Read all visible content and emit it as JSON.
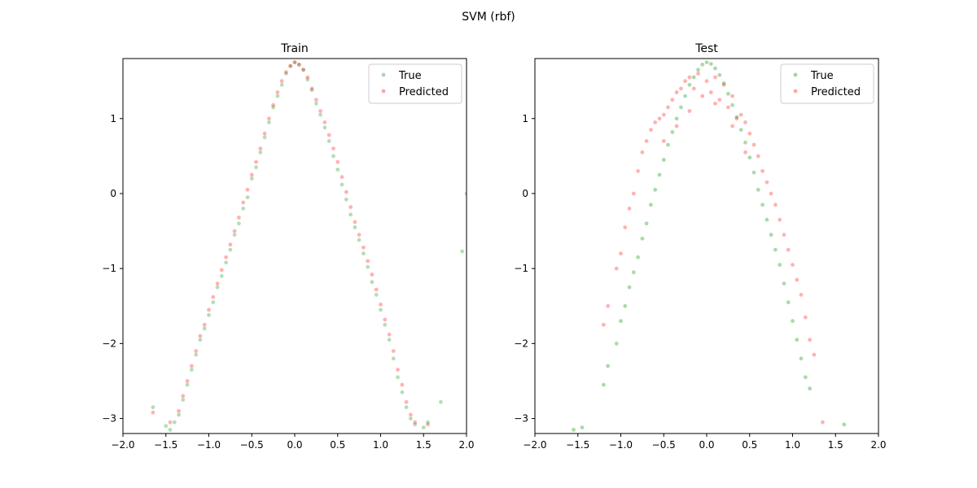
{
  "figure": {
    "suptitle": "SVM (rbf)"
  },
  "colors": {
    "true_series": "#2ca02c",
    "predicted_series": "#ff0000"
  },
  "chart_data": [
    {
      "type": "scatter",
      "title": "Train",
      "xlabel": "",
      "ylabel": "",
      "xlim": [
        -2.0,
        2.0
      ],
      "ylim": [
        -3.2,
        1.8
      ],
      "xticks": [
        "−2.0",
        "−1.5",
        "−1.0",
        "−0.5",
        "0.0",
        "0.5",
        "1.0",
        "1.5",
        "2.0"
      ],
      "yticks": [
        "−3",
        "−2",
        "−1",
        "0",
        "1"
      ],
      "xtick_values": [
        -2.0,
        -1.5,
        -1.0,
        -0.5,
        0.0,
        0.5,
        1.0,
        1.5,
        2.0
      ],
      "ytick_values": [
        -3,
        -2,
        -1,
        0,
        1
      ],
      "legend": {
        "position": "upper right",
        "entries": [
          "True",
          "Predicted"
        ]
      },
      "grid": false,
      "series": [
        {
          "name": "True",
          "color": "#2ca02c",
          "alpha": 0.35,
          "points": [
            [
              -1.65,
              -2.85
            ],
            [
              -1.5,
              -3.1
            ],
            [
              -1.45,
              -3.15
            ],
            [
              -1.4,
              -3.05
            ],
            [
              -1.35,
              -2.95
            ],
            [
              -1.3,
              -2.75
            ],
            [
              -1.25,
              -2.55
            ],
            [
              -1.2,
              -2.35
            ],
            [
              -1.15,
              -2.15
            ],
            [
              -1.1,
              -1.95
            ],
            [
              -1.05,
              -1.8
            ],
            [
              -1.0,
              -1.62
            ],
            [
              -0.95,
              -1.45
            ],
            [
              -0.9,
              -1.25
            ],
            [
              -0.85,
              -1.1
            ],
            [
              -0.8,
              -0.92
            ],
            [
              -0.75,
              -0.75
            ],
            [
              -0.7,
              -0.55
            ],
            [
              -0.65,
              -0.4
            ],
            [
              -0.6,
              -0.2
            ],
            [
              -0.55,
              -0.05
            ],
            [
              -0.5,
              0.2
            ],
            [
              -0.45,
              0.35
            ],
            [
              -0.4,
              0.55
            ],
            [
              -0.35,
              0.75
            ],
            [
              -0.3,
              0.95
            ],
            [
              -0.25,
              1.15
            ],
            [
              -0.2,
              1.3
            ],
            [
              -0.15,
              1.45
            ],
            [
              -0.1,
              1.6
            ],
            [
              -0.05,
              1.7
            ],
            [
              0.0,
              1.75
            ],
            [
              0.05,
              1.72
            ],
            [
              0.1,
              1.65
            ],
            [
              0.15,
              1.52
            ],
            [
              0.2,
              1.38
            ],
            [
              0.25,
              1.2
            ],
            [
              0.3,
              1.05
            ],
            [
              0.35,
              0.88
            ],
            [
              0.4,
              0.7
            ],
            [
              0.45,
              0.5
            ],
            [
              0.5,
              0.32
            ],
            [
              0.55,
              0.12
            ],
            [
              0.6,
              -0.08
            ],
            [
              0.65,
              -0.28
            ],
            [
              0.7,
              -0.45
            ],
            [
              0.75,
              -0.62
            ],
            [
              0.8,
              -0.8
            ],
            [
              0.85,
              -0.98
            ],
            [
              0.9,
              -1.18
            ],
            [
              0.95,
              -1.35
            ],
            [
              1.0,
              -1.55
            ],
            [
              1.05,
              -1.75
            ],
            [
              1.1,
              -1.95
            ],
            [
              1.15,
              -2.2
            ],
            [
              1.2,
              -2.45
            ],
            [
              1.25,
              -2.65
            ],
            [
              1.3,
              -2.85
            ],
            [
              1.35,
              -3.0
            ],
            [
              1.4,
              -3.08
            ],
            [
              1.5,
              -3.12
            ],
            [
              1.55,
              -3.05
            ],
            [
              1.7,
              -2.78
            ],
            [
              1.95,
              -0.77
            ],
            [
              2.0,
              0.0
            ]
          ]
        },
        {
          "name": "Predicted",
          "color": "#ff0000",
          "alpha": 0.3,
          "points": [
            [
              -1.65,
              -2.92
            ],
            [
              -1.45,
              -3.05
            ],
            [
              -1.35,
              -2.9
            ],
            [
              -1.3,
              -2.7
            ],
            [
              -1.25,
              -2.5
            ],
            [
              -1.2,
              -2.3
            ],
            [
              -1.15,
              -2.1
            ],
            [
              -1.1,
              -1.9
            ],
            [
              -1.05,
              -1.75
            ],
            [
              -1.0,
              -1.55
            ],
            [
              -0.95,
              -1.38
            ],
            [
              -0.9,
              -1.2
            ],
            [
              -0.85,
              -1.02
            ],
            [
              -0.8,
              -0.85
            ],
            [
              -0.75,
              -0.68
            ],
            [
              -0.7,
              -0.5
            ],
            [
              -0.65,
              -0.32
            ],
            [
              -0.6,
              -0.12
            ],
            [
              -0.55,
              0.05
            ],
            [
              -0.5,
              0.25
            ],
            [
              -0.45,
              0.42
            ],
            [
              -0.4,
              0.6
            ],
            [
              -0.35,
              0.8
            ],
            [
              -0.3,
              1.0
            ],
            [
              -0.25,
              1.18
            ],
            [
              -0.2,
              1.35
            ],
            [
              -0.15,
              1.5
            ],
            [
              -0.1,
              1.62
            ],
            [
              -0.05,
              1.7
            ],
            [
              0.0,
              1.75
            ],
            [
              0.05,
              1.72
            ],
            [
              0.1,
              1.65
            ],
            [
              0.15,
              1.55
            ],
            [
              0.2,
              1.4
            ],
            [
              0.25,
              1.25
            ],
            [
              0.3,
              1.1
            ],
            [
              0.35,
              0.95
            ],
            [
              0.4,
              0.78
            ],
            [
              0.45,
              0.6
            ],
            [
              0.5,
              0.42
            ],
            [
              0.55,
              0.22
            ],
            [
              0.6,
              0.02
            ],
            [
              0.65,
              -0.18
            ],
            [
              0.7,
              -0.38
            ],
            [
              0.75,
              -0.55
            ],
            [
              0.8,
              -0.72
            ],
            [
              0.85,
              -0.9
            ],
            [
              0.9,
              -1.08
            ],
            [
              0.95,
              -1.28
            ],
            [
              1.0,
              -1.48
            ],
            [
              1.05,
              -1.68
            ],
            [
              1.1,
              -1.88
            ],
            [
              1.15,
              -2.1
            ],
            [
              1.2,
              -2.35
            ],
            [
              1.25,
              -2.55
            ],
            [
              1.3,
              -2.78
            ],
            [
              1.35,
              -2.95
            ],
            [
              1.4,
              -3.05
            ],
            [
              1.55,
              -3.08
            ]
          ]
        }
      ]
    },
    {
      "type": "scatter",
      "title": "Test",
      "xlabel": "",
      "ylabel": "",
      "xlim": [
        -2.0,
        2.0
      ],
      "ylim": [
        -3.2,
        1.8
      ],
      "xticks": [
        "−2.0",
        "−1.5",
        "−1.0",
        "−0.5",
        "0.0",
        "0.5",
        "1.0",
        "1.5",
        "2.0"
      ],
      "yticks": [
        "−3",
        "−2",
        "−1",
        "0",
        "1"
      ],
      "xtick_values": [
        -2.0,
        -1.5,
        -1.0,
        -0.5,
        0.0,
        0.5,
        1.0,
        1.5,
        2.0
      ],
      "ytick_values": [
        -3,
        -2,
        -1,
        0,
        1
      ],
      "legend": {
        "position": "upper right",
        "entries": [
          "True",
          "Predicted"
        ]
      },
      "grid": false,
      "series": [
        {
          "name": "True",
          "color": "#2ca02c",
          "alpha": 0.4,
          "points": [
            [
              -1.55,
              -3.15
            ],
            [
              -1.45,
              -3.12
            ],
            [
              -1.2,
              -2.55
            ],
            [
              -1.15,
              -2.3
            ],
            [
              -1.05,
              -2.0
            ],
            [
              -1.0,
              -1.7
            ],
            [
              -0.95,
              -1.5
            ],
            [
              -0.9,
              -1.25
            ],
            [
              -0.85,
              -1.05
            ],
            [
              -0.8,
              -0.85
            ],
            [
              -0.75,
              -0.6
            ],
            [
              -0.7,
              -0.4
            ],
            [
              -0.65,
              -0.15
            ],
            [
              -0.6,
              0.05
            ],
            [
              -0.55,
              0.25
            ],
            [
              -0.5,
              0.45
            ],
            [
              -0.45,
              0.65
            ],
            [
              -0.4,
              0.82
            ],
            [
              -0.35,
              1.0
            ],
            [
              -0.3,
              1.15
            ],
            [
              -0.25,
              1.3
            ],
            [
              -0.2,
              1.45
            ],
            [
              -0.15,
              1.55
            ],
            [
              -0.1,
              1.65
            ],
            [
              -0.05,
              1.72
            ],
            [
              0.0,
              1.75
            ],
            [
              0.05,
              1.73
            ],
            [
              0.1,
              1.67
            ],
            [
              0.15,
              1.58
            ],
            [
              0.2,
              1.47
            ],
            [
              0.25,
              1.33
            ],
            [
              0.3,
              1.18
            ],
            [
              0.35,
              1.02
            ],
            [
              0.4,
              0.85
            ],
            [
              0.45,
              0.68
            ],
            [
              0.5,
              0.48
            ],
            [
              0.55,
              0.28
            ],
            [
              0.6,
              0.05
            ],
            [
              0.65,
              -0.15
            ],
            [
              0.7,
              -0.35
            ],
            [
              0.75,
              -0.55
            ],
            [
              0.8,
              -0.75
            ],
            [
              0.85,
              -0.95
            ],
            [
              0.9,
              -1.2
            ],
            [
              0.95,
              -1.45
            ],
            [
              1.0,
              -1.7
            ],
            [
              1.05,
              -1.95
            ],
            [
              1.1,
              -2.2
            ],
            [
              1.15,
              -2.45
            ],
            [
              1.2,
              -2.6
            ],
            [
              1.6,
              -3.08
            ]
          ]
        },
        {
          "name": "Predicted",
          "color": "#ff0000",
          "alpha": 0.3,
          "points": [
            [
              -1.2,
              -1.75
            ],
            [
              -1.15,
              -1.5
            ],
            [
              -1.05,
              -1.0
            ],
            [
              -1.0,
              -0.8
            ],
            [
              -0.95,
              -0.45
            ],
            [
              -0.9,
              -0.2
            ],
            [
              -0.85,
              0.0
            ],
            [
              -0.8,
              0.3
            ],
            [
              -0.75,
              0.55
            ],
            [
              -0.7,
              0.7
            ],
            [
              -0.65,
              0.85
            ],
            [
              -0.6,
              0.95
            ],
            [
              -0.55,
              1.0
            ],
            [
              -0.5,
              1.05
            ],
            [
              -0.45,
              1.15
            ],
            [
              -0.4,
              1.25
            ],
            [
              -0.35,
              1.35
            ],
            [
              -0.3,
              1.4
            ],
            [
              -0.25,
              1.5
            ],
            [
              -0.2,
              1.55
            ],
            [
              -0.15,
              1.4
            ],
            [
              -0.1,
              1.6
            ],
            [
              -0.05,
              1.3
            ],
            [
              0.0,
              1.5
            ],
            [
              0.05,
              1.35
            ],
            [
              0.1,
              1.55
            ],
            [
              0.15,
              1.25
            ],
            [
              0.2,
              1.45
            ],
            [
              0.25,
              1.15
            ],
            [
              0.3,
              1.3
            ],
            [
              0.35,
              1.0
            ],
            [
              0.4,
              1.05
            ],
            [
              0.45,
              0.95
            ],
            [
              0.5,
              0.8
            ],
            [
              0.55,
              0.65
            ],
            [
              0.6,
              0.5
            ],
            [
              0.65,
              0.3
            ],
            [
              0.7,
              0.15
            ],
            [
              0.75,
              0.0
            ],
            [
              0.8,
              -0.15
            ],
            [
              0.85,
              -0.35
            ],
            [
              0.9,
              -0.55
            ],
            [
              0.95,
              -0.75
            ],
            [
              1.0,
              -0.95
            ],
            [
              1.05,
              -1.15
            ],
            [
              1.1,
              -1.35
            ],
            [
              1.15,
              -1.65
            ],
            [
              1.2,
              -1.95
            ],
            [
              1.25,
              -2.15
            ],
            [
              1.35,
              -3.05
            ],
            [
              -0.35,
              0.9
            ],
            [
              -0.2,
              1.1
            ],
            [
              0.1,
              1.2
            ],
            [
              0.3,
              0.9
            ],
            [
              -0.5,
              0.7
            ],
            [
              0.45,
              0.55
            ]
          ]
        }
      ]
    }
  ]
}
